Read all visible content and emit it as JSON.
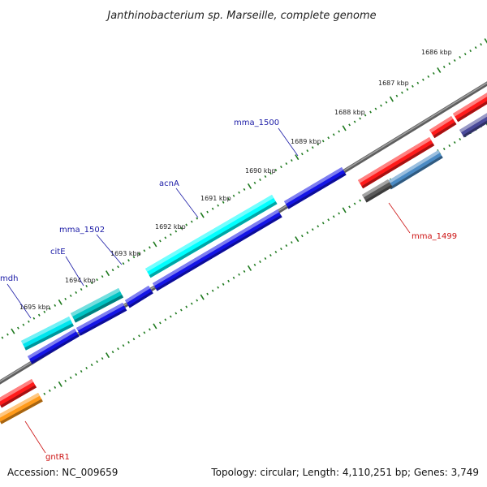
{
  "title": "Janthinobacterium sp. Marseille, complete genome",
  "accession": "Accession: NC_009659",
  "summary": "Topology: circular; Length: 4,110,251 bp; Genes: 3,749",
  "colors": {
    "backbone": "#808080",
    "ticks": "#1f7a1f",
    "forward_label": "#1a1aa6",
    "reverse_label": "#cc1111"
  },
  "scale_labels": [
    "1686 kbp",
    "1687 kbp",
    "1688 kbp",
    "1689 kbp",
    "1690 kbp",
    "1691 kbp",
    "1692 kbp",
    "1693 kbp",
    "1694 kbp",
    "1695 kbp"
  ],
  "gene_labels": [
    {
      "text": "mma_1500",
      "strand": "forward"
    },
    {
      "text": "acnA",
      "strand": "forward"
    },
    {
      "text": "mma_1502",
      "strand": "forward"
    },
    {
      "text": "citE",
      "strand": "forward"
    },
    {
      "text": "mdh",
      "strand": "forward"
    },
    {
      "text": "mma_1499",
      "strand": "reverse"
    },
    {
      "text": "gntR1",
      "strand": "reverse"
    }
  ],
  "features": [
    {
      "name": "forward-gene-1",
      "color": "#00e5ee"
    },
    {
      "name": "forward-gene-2",
      "color": "#00c4c4"
    },
    {
      "name": "forward-gene-3",
      "color": "#00ffff"
    },
    {
      "name": "forward-gene-4",
      "color": "#1414e6"
    },
    {
      "name": "forward-gene-5",
      "color": "#1414e6"
    },
    {
      "name": "forward-gene-6",
      "color": "#1414e6"
    },
    {
      "name": "forward-gene-7",
      "color": "#1414e6"
    },
    {
      "name": "forward-gene-8",
      "color": "#1414e6"
    },
    {
      "name": "forward-gene-9",
      "color": "#1414e6"
    },
    {
      "name": "reverse-gene-1",
      "color": "#ff1a1a"
    },
    {
      "name": "reverse-gene-2",
      "color": "#ff1a1a"
    },
    {
      "name": "reverse-gene-3",
      "color": "#ff1a1a"
    },
    {
      "name": "reverse-gene-4",
      "color": "#4a8ac4"
    },
    {
      "name": "reverse-gene-5",
      "color": "#5a5a5a"
    },
    {
      "name": "reverse-gene-6",
      "color": "#4a4a9a"
    },
    {
      "name": "reverse-gene-7",
      "color": "#ff1a1a"
    },
    {
      "name": "reverse-gene-8",
      "color": "#ff9a1a"
    }
  ]
}
